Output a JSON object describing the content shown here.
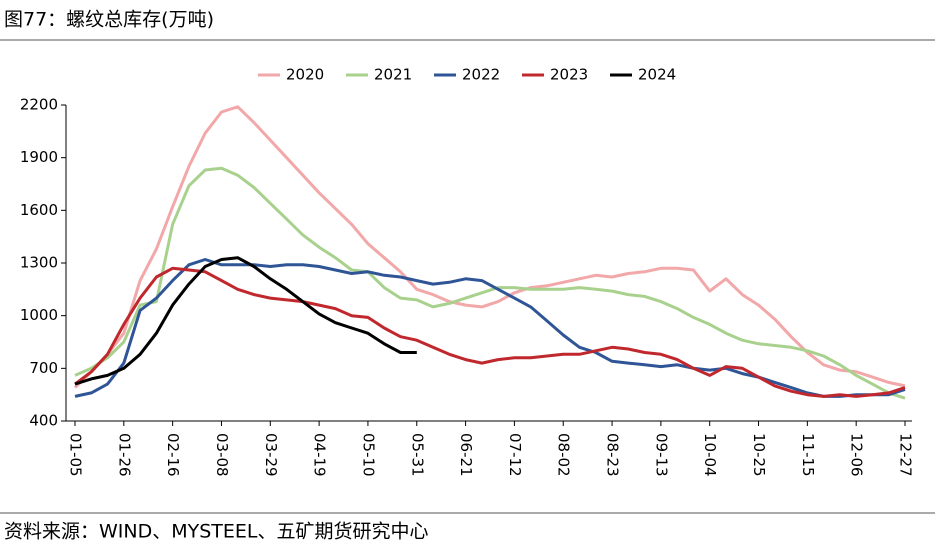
{
  "chart_data": {
    "type": "line",
    "title": "图77：螺纹总库存(万吨)",
    "source": "资料来源：WIND、MYSTEEL、五矿期货研究中心",
    "categories": [
      "01-05",
      null,
      null,
      "01-26",
      null,
      null,
      "02-16",
      null,
      null,
      "03-08",
      null,
      null,
      "03-29",
      null,
      null,
      "04-19",
      null,
      null,
      "05-10",
      null,
      null,
      "05-31",
      null,
      null,
      "06-21",
      null,
      null,
      "07-12",
      null,
      null,
      "08-02",
      null,
      null,
      "08-23",
      null,
      null,
      "09-13",
      null,
      null,
      "10-04",
      null,
      null,
      "10-25",
      null,
      null,
      "11-15",
      null,
      null,
      "12-06",
      null,
      null,
      "12-27"
    ],
    "ylim": [
      400,
      2200
    ],
    "yticks": [
      400,
      700,
      1000,
      1300,
      1600,
      1900,
      2200
    ],
    "grid": false,
    "legend": "top",
    "series": [
      {
        "name": "2020",
        "color": "#f2a7a9",
        "values": [
          590,
          680,
          780,
          900,
          1200,
          1380,
          1620,
          1850,
          2040,
          2160,
          2190,
          2100,
          2000,
          1900,
          1800,
          1700,
          1610,
          1520,
          1410,
          1330,
          1250,
          1150,
          1120,
          1080,
          1060,
          1050,
          1080,
          1130,
          1160,
          1170,
          1190,
          1210,
          1230,
          1220,
          1240,
          1250,
          1270,
          1270,
          1260,
          1140,
          1210,
          1120,
          1060,
          980,
          880,
          790,
          720,
          690,
          680,
          650,
          620,
          600
        ]
      },
      {
        "name": "2021",
        "color": "#a9d18e",
        "values": [
          660,
          700,
          760,
          850,
          1060,
          1080,
          1520,
          1740,
          1830,
          1840,
          1800,
          1730,
          1640,
          1550,
          1460,
          1390,
          1330,
          1260,
          1250,
          1160,
          1100,
          1090,
          1050,
          1070,
          1100,
          1130,
          1160,
          1160,
          1150,
          1150,
          1150,
          1160,
          1150,
          1140,
          1120,
          1110,
          1080,
          1040,
          990,
          950,
          900,
          860,
          840,
          830,
          820,
          800,
          770,
          720,
          660,
          610,
          560,
          530
        ]
      },
      {
        "name": "2022",
        "color": "#2f5597",
        "values": [
          540,
          560,
          610,
          730,
          1030,
          1100,
          1200,
          1290,
          1320,
          1290,
          1290,
          1290,
          1280,
          1290,
          1290,
          1280,
          1260,
          1240,
          1250,
          1230,
          1220,
          1200,
          1180,
          1190,
          1210,
          1200,
          1150,
          1100,
          1050,
          970,
          890,
          820,
          790,
          740,
          730,
          720,
          710,
          720,
          700,
          690,
          700,
          670,
          650,
          620,
          590,
          560,
          540,
          540,
          550,
          550,
          550,
          580
        ]
      },
      {
        "name": "2023",
        "color": "#c0282d",
        "values": [
          610,
          680,
          780,
          950,
          1100,
          1220,
          1270,
          1260,
          1250,
          1200,
          1150,
          1120,
          1100,
          1090,
          1080,
          1060,
          1040,
          1000,
          990,
          930,
          880,
          860,
          820,
          780,
          750,
          730,
          750,
          760,
          760,
          770,
          780,
          780,
          800,
          820,
          810,
          790,
          780,
          750,
          700,
          660,
          710,
          700,
          650,
          600,
          570,
          550,
          540,
          550,
          540,
          550,
          560,
          590
        ]
      },
      {
        "name": "2024",
        "color": "#000000",
        "values": [
          610,
          640,
          660,
          700,
          780,
          900,
          1060,
          1180,
          1280,
          1320,
          1330,
          1280,
          1210,
          1150,
          1080,
          1010,
          960,
          930,
          900,
          840,
          790,
          790,
          null,
          null,
          null,
          null,
          null,
          null,
          null,
          null,
          null,
          null,
          null,
          null,
          null,
          null,
          null,
          null,
          null,
          null,
          null,
          null,
          null,
          null,
          null,
          null,
          null,
          null,
          null,
          null,
          null,
          null
        ]
      }
    ]
  }
}
